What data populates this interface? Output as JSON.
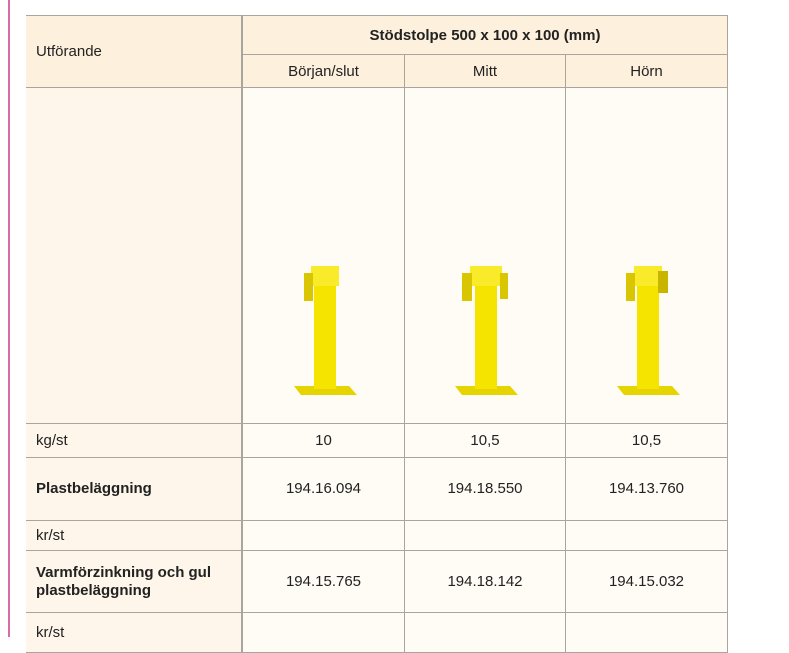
{
  "table": {
    "header": {
      "row_label": "Utförande",
      "title": "Stödstolpe 500 x 100 x 100 (mm)",
      "columns": [
        "Början/slut",
        "Mitt",
        "Hörn"
      ]
    },
    "rows": [
      [
        "kg/st",
        "10",
        "10,5",
        "10,5"
      ],
      [
        "Plastbeläggning",
        "194.16.094",
        "194.18.550",
        "194.13.760"
      ],
      [
        "kr/st",
        "",
        "",
        ""
      ],
      [
        "Varmförzinkning och gul plastbeläggning",
        "194.15.765",
        "194.18.142",
        "194.15.032"
      ],
      [
        "kr/st",
        "",
        "",
        ""
      ]
    ]
  }
}
